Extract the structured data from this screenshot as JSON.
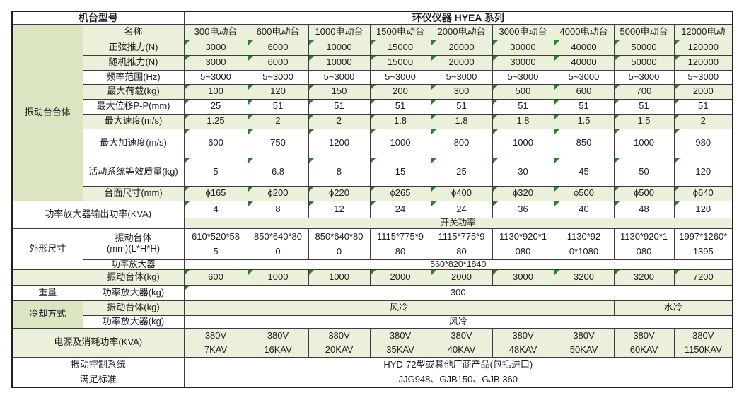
{
  "colors": {
    "band_green": "#ebf0da",
    "label_green": "#dce5c2",
    "triangle_green": "#2e7d32",
    "border": "#3c3c3c"
  },
  "header": {
    "model_label": "机台型号",
    "series": "环仪仪器 HYEA 系列"
  },
  "models": {
    "label": "名称",
    "names": [
      "300电动台",
      "600电动台",
      "1000电动台",
      "1500电动台",
      "2000电动台",
      "3000电动台",
      "4000电动台",
      "5000电动台",
      "12000电动"
    ]
  },
  "group_vibration_body": "振动台台体",
  "specs": {
    "sine_force": {
      "label": "正弦推力(N)",
      "values": [
        "3000",
        "6000",
        "10000",
        "15000",
        "20000",
        "30000",
        "40000",
        "50000",
        "120000"
      ]
    },
    "random_force": {
      "label": "随机推力(N)",
      "values": [
        "3000",
        "6000",
        "10000",
        "15000",
        "20000",
        "30000",
        "40000",
        "50000",
        "120000"
      ]
    },
    "freq_range": {
      "label": "频率范围(Hz)",
      "values": [
        "5~3000",
        "5~3000",
        "5~3000",
        "5~3000",
        "5~3000",
        "5~3000",
        "5~3000",
        "5~3000",
        "5~3000"
      ]
    },
    "max_load": {
      "label": "最大荷载(kg)",
      "values": [
        "100",
        "120",
        "150",
        "200",
        "300",
        "500",
        "600",
        "700",
        "2000"
      ]
    },
    "max_disp": {
      "label": "最大位移P-P(mm)",
      "values": [
        "25",
        "51",
        "51",
        "51",
        "51",
        "51",
        "51",
        "51",
        "51"
      ]
    },
    "max_speed": {
      "label": "最大速度(m/s)",
      "values": [
        "1.25",
        "2",
        "2",
        "1.8",
        "1.8",
        "1.8",
        "1.5",
        "1.5",
        "2"
      ]
    },
    "max_accel": {
      "label": "最大加速度(m/s)",
      "values": [
        "600",
        "750",
        "1200",
        "1000",
        "800",
        "1000",
        "850",
        "1000",
        "980"
      ]
    },
    "moving_mass": {
      "label": "活动系统等效质量(kg)",
      "values": [
        "5",
        "6.8",
        "8",
        "15",
        "25",
        "30",
        "45",
        "50",
        "120"
      ]
    },
    "table_size": {
      "label": "台面尺寸(mm)",
      "values": [
        "ϕ165",
        "ϕ200",
        "ϕ220",
        "ϕ265",
        "ϕ400",
        "ϕ320",
        "ϕ500",
        "ϕ500",
        "ϕ640"
      ]
    }
  },
  "amp_output": {
    "label": "功率放大器输出功率(KVA)",
    "values": [
      "4",
      "8",
      "12",
      "24",
      "24",
      "36",
      "40",
      "48",
      "120"
    ],
    "switch_power": "开关功率"
  },
  "dims": {
    "group": "外形尺寸",
    "body_label": "振动台体\n(mm)(L*H*H)",
    "body_values": [
      "610*520*58\n5",
      "850*640*80\n0",
      "850*640*80\n0",
      "1115*775*9\n80",
      "1115*775*9\n80",
      "1130*920*1\n080",
      "1130*92\n0*1080",
      "1130*920*1\n080",
      "1997*1260*\n1395"
    ],
    "amp_label": "功率放大器",
    "amp_value": "560*820*1840"
  },
  "weight": {
    "group": "重量",
    "body_label": "振动台体(kg)",
    "body_values": [
      "600",
      "1000",
      "1000",
      "2000",
      "2000",
      "3000",
      "3200",
      "3200",
      "7200"
    ],
    "amp_label": "功率放大器(kg)",
    "amp_value": "300"
  },
  "cooling": {
    "group": "冷却方式",
    "body_label": "振动台体(kg)",
    "body_air": "风冷",
    "body_water": "水冷",
    "amp_label": "功率放大器(kg)",
    "amp_value": "风冷"
  },
  "power": {
    "label": "电源及消耗功率(KVA)",
    "values": [
      "380V\n7KAV",
      "380V\n16KAV",
      "380V\n20KAV",
      "380V\n35KAV",
      "380V\n40KAV",
      "380V\n48KAV",
      "380V\n50KAV",
      "380V\n60KAV",
      "380V\n1150KAV"
    ]
  },
  "control": {
    "label": "振动控制系统",
    "value": "HYD-72型或其他厂商产品(包括进口)"
  },
  "standards": {
    "label": "满足标准",
    "value": "JJG948、GJB150、GJB 360"
  }
}
